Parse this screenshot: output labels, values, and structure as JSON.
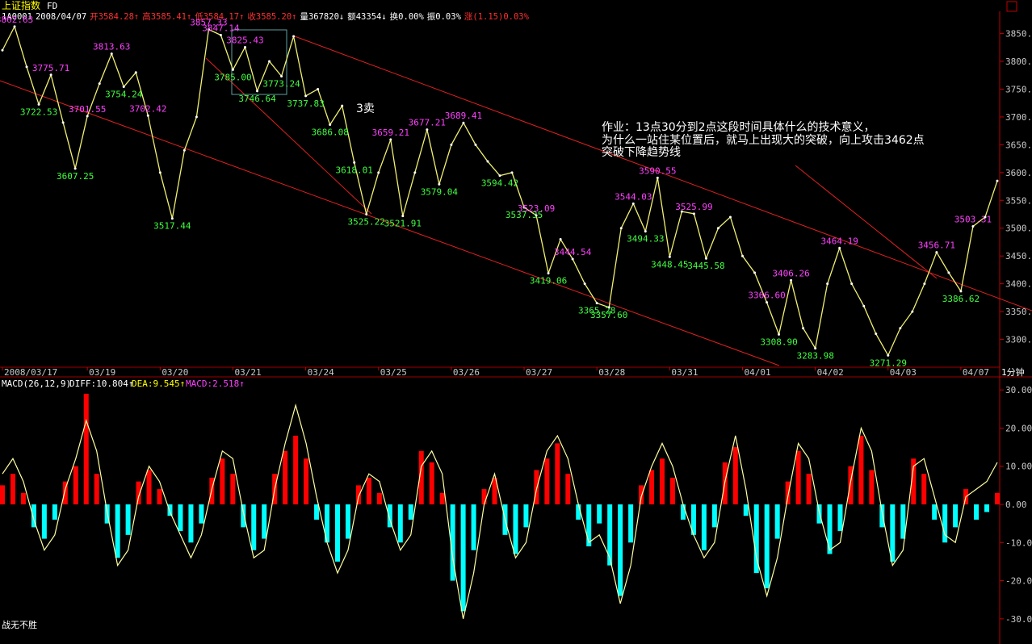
{
  "chart_data": [
    {
      "type": "line",
      "title": "上证指数",
      "subtitle": "FD",
      "quote": [
        "1A0001",
        "2008/04/07",
        "开3584.28↑",
        "高3585.41↑",
        "低3584.17↑",
        "收3585.20↑",
        "量367820↓",
        "额43354↓",
        "换0.00%",
        "振0.03%",
        "涨(1.15)0.03%"
      ],
      "period": "1分钟",
      "annotations": [
        "作业：13点30分到2点这段时间具体什么的技术意义，",
        "为什么一站住某位置后，就马上出现大的突破，向上攻击3462点",
        "突破下降趋势线",
        "3卖"
      ],
      "categories": [
        "2008/03/17",
        null,
        null,
        null,
        null,
        null,
        null,
        "03/19",
        null,
        null,
        null,
        null,
        null,
        "03/20",
        null,
        null,
        null,
        null,
        null,
        "03/21",
        null,
        null,
        null,
        null,
        null,
        "03/24",
        null,
        null,
        null,
        null,
        null,
        "03/25",
        null,
        null,
        null,
        null,
        null,
        "03/26",
        null,
        null,
        null,
        null,
        null,
        "03/27",
        null,
        null,
        null,
        null,
        null,
        "03/28",
        null,
        null,
        null,
        null,
        null,
        "03/31",
        null,
        null,
        null,
        null,
        null,
        "04/01",
        null,
        null,
        null,
        null,
        null,
        "04/02",
        null,
        null,
        null,
        null,
        null,
        "04/03",
        null,
        null,
        null,
        null,
        null,
        "04/07",
        null,
        null,
        null
      ],
      "values": [
        3820,
        3862.63,
        3790,
        3722.53,
        3775.71,
        3690,
        3607.25,
        3701.55,
        3760,
        3813.63,
        3754.24,
        3780,
        3702.42,
        3600,
        3517.44,
        3640,
        3700,
        3857.33,
        3847.14,
        3785.0,
        3825.43,
        3746.64,
        3800,
        3773.24,
        3845,
        3737.83,
        3750,
        3686.08,
        3720,
        3618.01,
        3525.22,
        3600,
        3659.21,
        3521.91,
        3600,
        3677.21,
        3579.04,
        3650,
        3689.41,
        3650,
        3620,
        3594.42,
        3600,
        3537.35,
        3523.09,
        3419.06,
        3480,
        3444.54,
        3400,
        3365.28,
        3357.6,
        3500,
        3544.03,
        3494.33,
        3590.55,
        3448.45,
        3530,
        3525.99,
        3445.58,
        3500,
        3520,
        3450,
        3420,
        3366.6,
        3308.9,
        3406.26,
        3320,
        3283.98,
        3400,
        3464.19,
        3400,
        3360,
        3310,
        3271.29,
        3320,
        3350,
        3400,
        3456.71,
        3420,
        3386.62,
        3503.31,
        3520,
        3585
      ],
      "value_labels": [
        null,
        "3862.63",
        null,
        "3722.53",
        "3775.71",
        null,
        "3607.25",
        "3701.55",
        null,
        "3813.63",
        "3754.24",
        null,
        "3702.42",
        null,
        "3517.44",
        null,
        null,
        "3857.33",
        "3847.14",
        "3785.00",
        "3825.43",
        "3746.64",
        null,
        "3773.24",
        null,
        "3737.83",
        null,
        "3686.08",
        null,
        "3618.01",
        "3525.22",
        null,
        "3659.21",
        "3521.91",
        null,
        "3677.21",
        "3579.04",
        null,
        "3689.41",
        null,
        null,
        "3594.42",
        null,
        "3537.35",
        "3523.09",
        "3419.06",
        null,
        "3444.54",
        null,
        "3365.28",
        "3357.60",
        null,
        "3544.03",
        "3494.33",
        "3590.55",
        "3448.45",
        null,
        "3525.99",
        "3445.58",
        null,
        null,
        null,
        null,
        "3366.60",
        "3308.90",
        "3406.26",
        null,
        "3283.98",
        null,
        "3464.19",
        null,
        null,
        null,
        "3271.29",
        null,
        null,
        null,
        "3456.71",
        null,
        "3386.62",
        "3503.31",
        null,
        null
      ],
      "color": "#f0f070",
      "high_label_color": "#ff40ff",
      "low_label_color": "#40ff40",
      "ylim": [
        3250,
        3890
      ],
      "yticks": [
        {
          "value": 3300,
          "label": "3300.00"
        },
        {
          "value": 3350,
          "label": "3350.00"
        },
        {
          "value": 3400,
          "label": "3400.00"
        },
        {
          "value": 3450,
          "label": "3450.00"
        },
        {
          "value": 3500,
          "label": "3500.00"
        },
        {
          "value": 3550,
          "label": "3550.00"
        },
        {
          "value": 3600,
          "label": "3600.00"
        },
        {
          "value": 3650,
          "label": "3650.00"
        },
        {
          "value": 3700,
          "label": "3700.00"
        },
        {
          "value": 3750,
          "label": "3750.00"
        },
        {
          "value": 3800,
          "label": "3800.00"
        },
        {
          "value": 3850,
          "label": "3850.00"
        }
      ],
      "grid": false
    },
    {
      "type": "bar",
      "title": "MACD(26,12,9)",
      "legend": [
        "DIFF:10.804↑",
        "DEA:9.545↑",
        "MACD:2.518↑"
      ],
      "series": [
        {
          "type": "bar",
          "color": "#ff0000",
          "negative_color": "#00ffff",
          "values": [
            5,
            8,
            3,
            -6,
            -9,
            -4,
            6,
            10,
            29,
            8,
            -5,
            -14,
            -8,
            6,
            9,
            4,
            -3,
            -7,
            -10,
            -5,
            7,
            12,
            8,
            -6,
            -12,
            -9,
            8,
            14,
            18,
            12,
            -4,
            -10,
            -15,
            -9,
            5,
            7,
            3,
            -6,
            -10,
            -4,
            14,
            11,
            3,
            -20,
            -28,
            -12,
            4,
            7,
            -8,
            -13,
            -6,
            9,
            12,
            16,
            8,
            -4,
            -11,
            -5,
            -16,
            -24,
            -10,
            5,
            9,
            12,
            7,
            -4,
            -8,
            -12,
            -6,
            11,
            15,
            -3,
            -18,
            -22,
            -9,
            6,
            14,
            8,
            -5,
            -13,
            -7,
            10,
            18,
            9,
            -6,
            -15,
            -9,
            12,
            8,
            -4,
            -10,
            -6,
            4,
            -4,
            -2,
            3
          ]
        },
        {
          "type": "line",
          "color": "#ffffa0",
          "values": [
            8,
            12,
            6,
            -4,
            -12,
            -8,
            4,
            12,
            22,
            14,
            -2,
            -16,
            -12,
            2,
            10,
            6,
            -2,
            -8,
            -14,
            -8,
            4,
            14,
            12,
            -2,
            -14,
            -12,
            4,
            16,
            26,
            16,
            2,
            -10,
            -18,
            -12,
            2,
            8,
            6,
            -4,
            -12,
            -8,
            10,
            14,
            8,
            -14,
            -30,
            -18,
            0,
            8,
            -4,
            -14,
            -10,
            4,
            14,
            18,
            12,
            0,
            -10,
            -8,
            -14,
            -26,
            -16,
            2,
            10,
            16,
            10,
            0,
            -8,
            -14,
            -10,
            6,
            18,
            4,
            -14,
            -24,
            -14,
            2,
            16,
            12,
            -2,
            -12,
            -10,
            6,
            20,
            14,
            -2,
            -16,
            -12,
            10,
            12,
            2,
            -8,
            -10,
            2,
            4,
            6,
            11
          ]
        }
      ],
      "ylim": [
        -33,
        33
      ],
      "yticks": [
        {
          "value": 30,
          "label": "30.00"
        },
        {
          "value": 20,
          "label": "20.00"
        },
        {
          "value": 10,
          "label": "10.00"
        },
        {
          "value": 0,
          "label": "0.00"
        },
        {
          "value": -10,
          "label": "-10.00"
        },
        {
          "value": -20,
          "label": "-20.00"
        },
        {
          "value": -30,
          "label": "-30.00"
        }
      ]
    }
  ],
  "footer": "战无不胜"
}
